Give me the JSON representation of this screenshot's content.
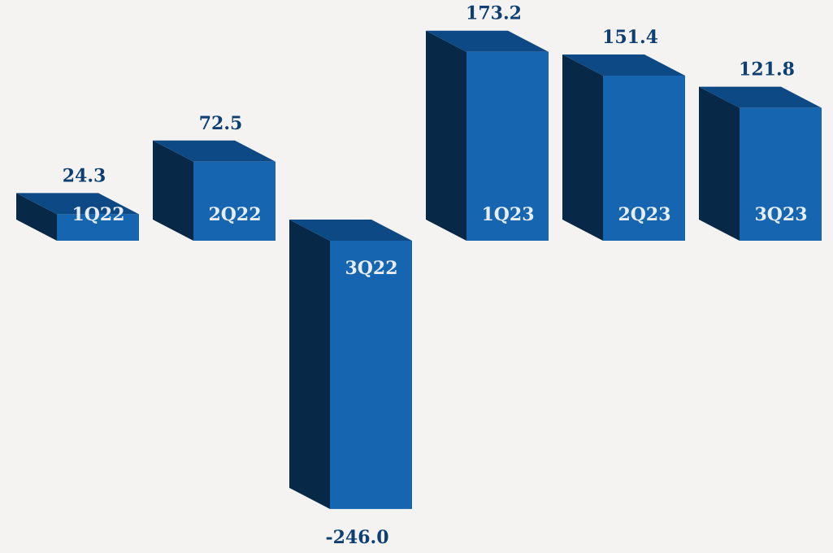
{
  "chart_data": {
    "type": "bar",
    "style": "3d",
    "categories": [
      "1Q22",
      "2Q22",
      "3Q22",
      "1Q23",
      "2Q23",
      "3Q23"
    ],
    "values": [
      24.3,
      72.5,
      -246.0,
      173.2,
      151.4,
      121.8
    ],
    "value_labels": [
      "24.3",
      "72.5",
      "-246.0",
      "173.2",
      "151.4",
      "121.8"
    ],
    "title": "",
    "xlabel": "",
    "ylabel": "",
    "grid": false,
    "legend": "none",
    "colors": {
      "front": "#1565b0",
      "top": "#0d4a85",
      "side": "#082848",
      "value_text": "#0d3f73",
      "category_text": "#e8edf4",
      "background": "#f5f3f2"
    }
  }
}
